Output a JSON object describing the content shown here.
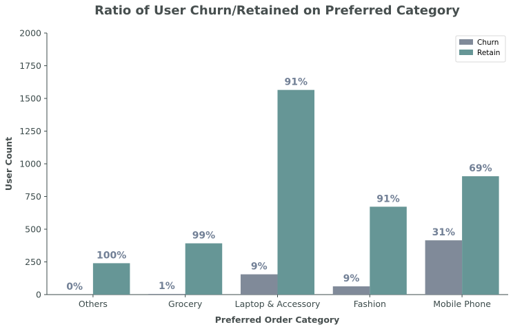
{
  "chart_data": {
    "type": "bar",
    "title": "Ratio of User Churn/Retained on Preferred Category",
    "xlabel": "Preferred Order Category",
    "ylabel": "User Count",
    "ylim": [
      0,
      2000
    ],
    "yticks": [
      0,
      250,
      500,
      750,
      1000,
      1250,
      1500,
      1750,
      2000
    ],
    "categories": [
      "Others",
      "Grocery",
      "Laptop & Accessory",
      "Fashion",
      "Mobile Phone"
    ],
    "series": [
      {
        "name": "Churn",
        "color": "#808a99",
        "values": [
          0,
          5,
          155,
          63,
          415
        ],
        "labels": [
          "0%",
          "1%",
          "9%",
          "9%",
          "31%"
        ]
      },
      {
        "name": "Retain",
        "color": "#669696",
        "values": [
          240,
          392,
          1565,
          672,
          905
        ],
        "labels": [
          "100%",
          "99%",
          "91%",
          "91%",
          "69%"
        ]
      }
    ],
    "legend_position": "top-right",
    "grid": false
  }
}
